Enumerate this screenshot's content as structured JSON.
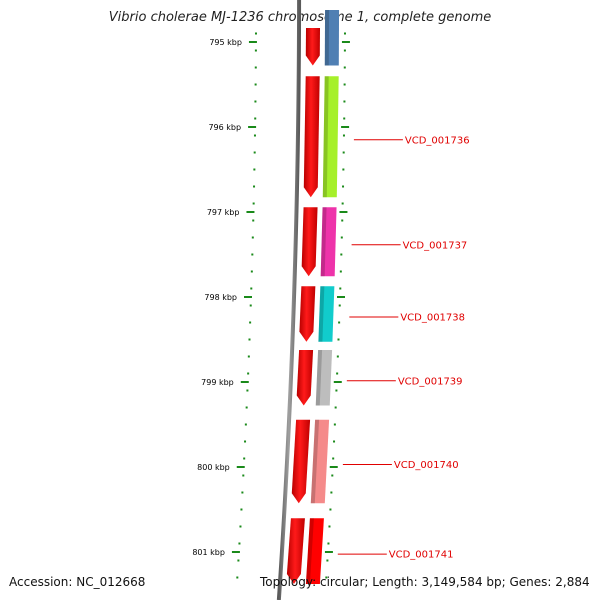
{
  "title": "Vibrio cholerae MJ-1236 chromosome 1, complete genome",
  "accession_text": "Accession: NC_012668",
  "summary_text": "Topology: circular; Length: 3,149,584 bp; Genes: 2,884",
  "colors": {
    "backbone": "#7a7a7a",
    "ticks": "#1a8a1a",
    "cds_track": "#ff0000",
    "label": "#e00000"
  },
  "ticks": [
    {
      "label": "795 kbp",
      "position_kbp": 795
    },
    {
      "label": "796 kbp",
      "position_kbp": 796
    },
    {
      "label": "797 kbp",
      "position_kbp": 797
    },
    {
      "label": "798 kbp",
      "position_kbp": 798
    },
    {
      "label": "799 kbp",
      "position_kbp": 799
    },
    {
      "label": "800 kbp",
      "position_kbp": 800
    },
    {
      "label": "801 kbp",
      "position_kbp": 801
    }
  ],
  "genes": [
    {
      "label": "",
      "start_kbp": 794.6,
      "end_kbp": 795.3,
      "color": "#4f7fb3"
    },
    {
      "label": "VCD_001736",
      "start_kbp": 795.38,
      "end_kbp": 796.85,
      "color": "#a6f02a"
    },
    {
      "label": "VCD_001737",
      "start_kbp": 796.92,
      "end_kbp": 797.78,
      "color": "#ee33aa"
    },
    {
      "label": "VCD_001738",
      "start_kbp": 797.85,
      "end_kbp": 798.55,
      "color": "#11cccc"
    },
    {
      "label": "VCD_001739",
      "start_kbp": 798.6,
      "end_kbp": 799.3,
      "color": "#bdbdbd"
    },
    {
      "label": "VCD_001740",
      "start_kbp": 799.42,
      "end_kbp": 800.45,
      "color": "#f58a8a"
    },
    {
      "label": "VCD_001741",
      "start_kbp": 800.58,
      "end_kbp": 801.4,
      "color": "#ff0000"
    }
  ]
}
